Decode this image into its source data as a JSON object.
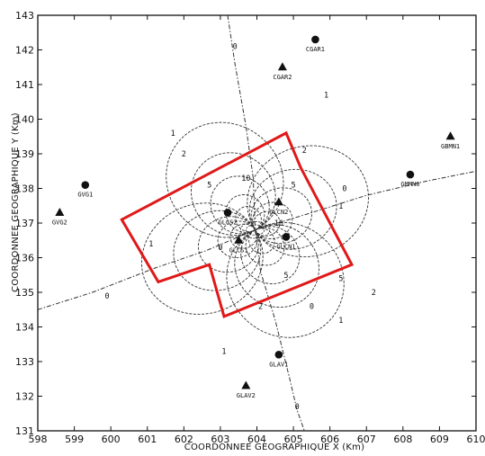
{
  "chart_data": {
    "type": "contour",
    "xlabel": "COORDONNEE GEOGRAPHIQUE X (Km)",
    "ylabel": "COORDONNEE GEOGRAPHIQUE Y (Km)",
    "xlim": [
      598,
      610
    ],
    "ylim": [
      131,
      143
    ],
    "xticks": [
      "598",
      "599",
      "600",
      "601",
      "602",
      "603",
      "604",
      "605",
      "606",
      "607",
      "608",
      "609",
      "610"
    ],
    "yticks": [
      "131",
      "132",
      "133",
      "134",
      "135",
      "136",
      "137",
      "138",
      "139",
      "140",
      "141",
      "142",
      "143"
    ],
    "colors": {
      "contour": "#333333",
      "outline": "#e01818",
      "axes": "#111111"
    },
    "stations": [
      {
        "label": "CGAR1",
        "x": 605.6,
        "y": 142.3,
        "marker": "circle"
      },
      {
        "label": "CGAR2",
        "x": 604.7,
        "y": 141.5,
        "marker": "triangle"
      },
      {
        "label": "GBMN1",
        "x": 609.3,
        "y": 139.5,
        "marker": "triangle"
      },
      {
        "label": "GMMN0",
        "x": 608.2,
        "y": 138.4,
        "marker": "circle"
      },
      {
        "label": "GVG1",
        "x": 599.3,
        "y": 138.1,
        "marker": "circle"
      },
      {
        "label": "GVG2",
        "x": 598.6,
        "y": 137.3,
        "marker": "triangle"
      },
      {
        "label": "GLCS2",
        "x": 603.2,
        "y": 137.3,
        "marker": "circle"
      },
      {
        "label": "GLCN2",
        "x": 604.6,
        "y": 137.6,
        "marker": "triangle"
      },
      {
        "label": "GLCS1",
        "x": 603.5,
        "y": 136.5,
        "marker": "triangle"
      },
      {
        "label": "GLCN1",
        "x": 604.8,
        "y": 136.6,
        "marker": "circle"
      },
      {
        "label": "GLAV1",
        "x": 604.6,
        "y": 133.2,
        "marker": "circle"
      },
      {
        "label": "GLAV2",
        "x": 603.7,
        "y": 132.3,
        "marker": "triangle"
      }
    ],
    "contour_labels": [
      {
        "text": "0",
        "x": 603.4,
        "y": 142.1
      },
      {
        "text": "0",
        "x": 599.9,
        "y": 134.9
      },
      {
        "text": "0",
        "x": 605.5,
        "y": 134.6
      },
      {
        "text": "0",
        "x": 605.1,
        "y": 131.7
      },
      {
        "text": "0",
        "x": 606.4,
        "y": 138.0
      },
      {
        "text": "1",
        "x": 605.9,
        "y": 140.7
      },
      {
        "text": "1",
        "x": 601.7,
        "y": 139.6
      },
      {
        "text": "1",
        "x": 601.1,
        "y": 136.4
      },
      {
        "text": "1",
        "x": 603.1,
        "y": 133.3
      },
      {
        "text": "1",
        "x": 606.3,
        "y": 134.2
      },
      {
        "text": "2",
        "x": 602.0,
        "y": 139.0
      },
      {
        "text": "2",
        "x": 605.3,
        "y": 139.1
      },
      {
        "text": "2",
        "x": 604.1,
        "y": 134.6
      },
      {
        "text": "2",
        "x": 607.2,
        "y": 135.0
      },
      {
        "text": "5",
        "x": 602.7,
        "y": 138.1
      },
      {
        "text": "5",
        "x": 605.0,
        "y": 138.1
      },
      {
        "text": "5",
        "x": 604.8,
        "y": 135.5
      },
      {
        "text": "5",
        "x": 606.3,
        "y": 135.4
      },
      {
        "text": "10",
        "x": 603.7,
        "y": 138.3
      },
      {
        "text": "10",
        "x": 604.6,
        "y": 137.0
      },
      {
        "text": "0",
        "x": 603.0,
        "y": 136.3
      },
      {
        "text": "1",
        "x": 606.3,
        "y": 137.5
      }
    ],
    "outline": [
      [
        600.3,
        137.1
      ],
      [
        604.8,
        139.6
      ],
      [
        605.2,
        138.6
      ],
      [
        606.6,
        135.8
      ],
      [
        603.1,
        134.3
      ],
      [
        602.7,
        135.8
      ],
      [
        601.3,
        135.3
      ],
      [
        600.3,
        137.1
      ]
    ]
  }
}
